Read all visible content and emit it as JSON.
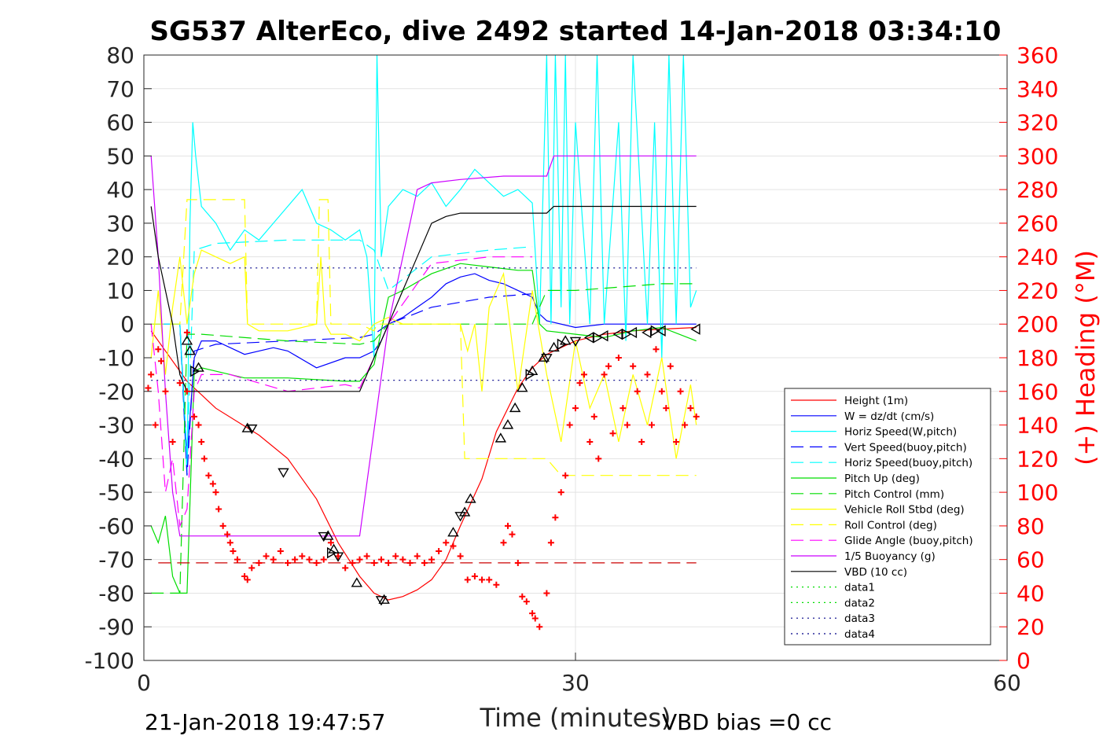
{
  "chart_data": {
    "type": "line",
    "title": "SG537 AlterEco, dive 2492 started 14-Jan-2018 03:34:10",
    "xlabel": "Time (minutes)",
    "ylabel": "",
    "ylabel_right": "(+) Heading (°M)",
    "xlim": [
      0,
      60
    ],
    "ylim": [
      -100,
      80
    ],
    "ylim_right": [
      0,
      360
    ],
    "xticks": [
      0,
      30,
      60
    ],
    "yticks": [
      80,
      70,
      60,
      50,
      40,
      30,
      20,
      10,
      0,
      -10,
      -20,
      -30,
      -40,
      -50,
      -60,
      -70,
      -80,
      -90,
      -100
    ],
    "yticks_right": [
      360,
      340,
      320,
      300,
      280,
      260,
      240,
      220,
      200,
      180,
      160,
      140,
      120,
      100,
      80,
      60,
      40,
      20,
      0
    ],
    "grid": true,
    "legend_position": "lower-right",
    "footer_left": "21-Jan-2018 19:47:57",
    "footer_right": "VBD bias =0 cc",
    "series": [
      {
        "name": "Height (1m)",
        "color": "#ff0000",
        "style": "solid",
        "x": [
          0.5,
          3,
          5,
          8,
          10,
          12,
          13.5,
          15,
          16,
          17,
          18,
          19,
          20,
          21,
          22,
          23.5,
          24.5,
          26,
          27,
          28,
          30,
          32,
          34,
          36,
          38.4
        ],
        "y": [
          -2,
          -17,
          -25,
          -33,
          -40,
          -52,
          -65,
          -75,
          -80,
          -82,
          -81,
          -79,
          -76,
          -70,
          -60,
          -46,
          -32,
          -19,
          -13,
          -9,
          -5,
          -3,
          -2,
          -1.5,
          -1
        ]
      },
      {
        "name": "W = dz/dt (cm/s)",
        "color": "#0000ff",
        "style": "solid",
        "x": [
          0.5,
          2,
          2.5,
          3,
          3.5,
          4,
          5,
          7,
          9,
          10,
          12,
          14,
          15,
          16,
          16.5,
          17,
          18,
          19,
          20,
          21,
          22,
          23,
          24,
          25,
          26,
          27,
          27.5,
          28,
          30,
          32,
          34,
          36,
          38.4
        ],
        "y": [
          0,
          0,
          0,
          -40,
          -10,
          -5,
          -5,
          -9,
          -7,
          -8,
          -13,
          -10,
          -10,
          -8,
          -5,
          0,
          2,
          5,
          8,
          12,
          14,
          15,
          13,
          12,
          10,
          8,
          3,
          1,
          -1,
          0,
          0,
          0,
          0
        ]
      },
      {
        "name": "Horiz Speed(W,pitch)",
        "color": "#00ffff",
        "style": "solid",
        "x": [
          0.5,
          2,
          2.5,
          3,
          3.2,
          3.4,
          3.6,
          4,
          5,
          6,
          7,
          8,
          9,
          10,
          11,
          12,
          13,
          14,
          15,
          15.5,
          16,
          16.2,
          16.5,
          17,
          18,
          19,
          20,
          21,
          22,
          23,
          24,
          25,
          26,
          27,
          27.5,
          28,
          28.3,
          28.6,
          29,
          29.3,
          29.6,
          30,
          31,
          31.5,
          32,
          33,
          33.5,
          34,
          35,
          35.5,
          36,
          36.5,
          37,
          37.5,
          38,
          38.4
        ],
        "y": [
          0,
          0,
          0,
          -45,
          30,
          60,
          50,
          35,
          30,
          22,
          28,
          25,
          30,
          35,
          40,
          30,
          28,
          25,
          28,
          20,
          -10,
          80,
          20,
          35,
          40,
          38,
          42,
          35,
          40,
          46,
          42,
          38,
          40,
          36,
          0,
          80,
          0,
          80,
          5,
          80,
          0,
          60,
          0,
          80,
          0,
          60,
          -5,
          80,
          0,
          60,
          -10,
          80,
          0,
          80,
          5,
          10
        ]
      },
      {
        "name": "Vert Speed(buoy,pitch)",
        "color": "#0000ff",
        "style": "dashed",
        "x": [
          0.5,
          2.5,
          3,
          3.5,
          5,
          10,
          15,
          16,
          17,
          20,
          24,
          27
        ],
        "y": [
          0,
          0,
          -45,
          -8,
          -6,
          -5,
          -4,
          -3,
          0,
          5,
          8,
          9
        ]
      },
      {
        "name": "Horiz Speed(buoy,pitch)",
        "color": "#00ffff",
        "style": "dashed",
        "x": [
          0.5,
          2.5,
          3,
          3.5,
          5,
          10,
          15,
          16,
          17,
          20,
          24,
          27
        ],
        "y": [
          0,
          0,
          -40,
          22,
          24,
          25,
          25,
          22,
          10,
          20,
          22,
          23
        ]
      },
      {
        "name": "Pitch Up (deg)",
        "color": "#00dd00",
        "style": "solid",
        "x": [
          0.5,
          1,
          1.5,
          2,
          2.5,
          3,
          3.5,
          4,
          5,
          7,
          10,
          14,
          15,
          16,
          17,
          18,
          20,
          22,
          24,
          26,
          27,
          27.5,
          28,
          30,
          32,
          34,
          36,
          38.4
        ],
        "y": [
          -60,
          -65,
          -57,
          -75,
          -80,
          -80,
          -14,
          -13,
          -14,
          -16,
          -16,
          -17,
          -17,
          -12,
          8,
          10,
          15,
          18,
          17,
          16,
          16,
          0,
          -2,
          -3,
          -4,
          -2,
          -1,
          -5
        ]
      },
      {
        "name": "Pitch Control (mm)",
        "color": "#00dd00",
        "style": "dashed",
        "x": [
          0.5,
          2.5,
          3,
          4,
          10,
          15,
          16,
          17,
          20,
          24,
          27,
          28,
          30,
          33,
          36,
          38.4
        ],
        "y": [
          -80,
          -80,
          -3,
          -3,
          -5,
          -6,
          -5,
          0,
          0,
          0,
          0,
          10,
          10,
          11,
          12,
          12
        ]
      },
      {
        "name": "Vehicle Roll Stbd (deg)",
        "color": "#ffff00",
        "style": "solid",
        "x": [
          0.5,
          1,
          1.5,
          2,
          2.5,
          3,
          3.5,
          4,
          5,
          6,
          7,
          7.2,
          8,
          10,
          12,
          12.3,
          12.6,
          13,
          14,
          15,
          16,
          17,
          18,
          20,
          22,
          22.5,
          23,
          23.5,
          24,
          25,
          26,
          27,
          28,
          29,
          30,
          31,
          32,
          33,
          34,
          35,
          36,
          37,
          38,
          38.4
        ],
        "y": [
          -10,
          10,
          -15,
          5,
          20,
          0,
          15,
          22,
          20,
          18,
          20,
          0,
          -2,
          -2,
          0,
          20,
          0,
          -3,
          -3,
          -5,
          0,
          2,
          0,
          0,
          0,
          -8,
          0,
          -20,
          5,
          15,
          -20,
          10,
          -15,
          -35,
          -5,
          -25,
          -15,
          -35,
          -15,
          -30,
          -10,
          -40,
          -18,
          -30
        ]
      },
      {
        "name": "Roll Control (deg)",
        "color": "#ffff00",
        "style": "dashed",
        "x": [
          0.5,
          2.5,
          3,
          4,
          6,
          7,
          7.2,
          12,
          12.2,
          12.8,
          13,
          15,
          16,
          16.2,
          17,
          22,
          22.3,
          27,
          28,
          29,
          30,
          31,
          32,
          33,
          34,
          35,
          36,
          37,
          38.4
        ],
        "y": [
          0,
          0,
          37,
          37,
          37,
          37,
          0,
          0,
          37,
          37,
          0,
          0,
          -2,
          0,
          0,
          0,
          -40,
          -40,
          -40,
          -45,
          -45,
          -45,
          -45,
          -45,
          -45,
          -45,
          -45,
          -45,
          -45
        ]
      },
      {
        "name": "Glide Angle (buoy,pitch)",
        "color": "#ff00ff",
        "style": "dashed",
        "x": [
          0.5,
          1,
          1.5,
          2,
          2.5,
          3,
          3.5,
          4,
          6,
          10,
          14,
          15,
          16,
          17,
          20,
          24,
          27
        ],
        "y": [
          0,
          -20,
          -50,
          -40,
          -60,
          -55,
          -20,
          -15,
          -15,
          -20,
          -18,
          -19,
          -10,
          0,
          18,
          20,
          20
        ]
      },
      {
        "name": "1/5 Buoyancy (g)",
        "color": "#cc00ff",
        "style": "solid",
        "x": [
          0.5,
          1,
          1.5,
          2,
          2.5,
          3,
          3.5,
          7,
          10,
          14,
          15,
          17,
          19,
          20,
          22,
          25,
          28,
          28.5,
          30,
          33,
          36,
          38.4
        ],
        "y": [
          50,
          20,
          -20,
          -50,
          -63,
          -63,
          -63,
          -63,
          -63,
          -63,
          -63,
          0,
          40,
          42,
          43,
          44,
          44,
          50,
          50,
          50,
          50,
          50
        ]
      },
      {
        "name": "VBD (10 cc)",
        "color": "#000000",
        "style": "solid",
        "x": [
          0.5,
          1,
          2,
          2.5,
          3,
          3.5,
          7,
          10,
          14,
          15,
          16,
          17,
          18,
          19,
          20,
          21,
          22,
          25,
          28,
          28.5,
          30,
          33,
          36,
          38.4
        ],
        "y": [
          35,
          20,
          0,
          -15,
          -20,
          -20,
          -20,
          -20,
          -20,
          -20,
          -10,
          0,
          10,
          20,
          30,
          32,
          33,
          33,
          33,
          35,
          35,
          35,
          35,
          35
        ]
      },
      {
        "name": "data1",
        "color": "#00dd00",
        "style": "dotted",
        "x": [],
        "y": []
      },
      {
        "name": "data2",
        "color": "#00dd00",
        "style": "dotted",
        "x": [],
        "y": []
      },
      {
        "name": "data3",
        "color": "#000088",
        "style": "dotted",
        "x": [
          0.5,
          38.4
        ],
        "y": [
          16.7,
          16.7
        ]
      },
      {
        "name": "data4",
        "color": "#000088",
        "style": "dotted",
        "x": [
          0.5,
          38.4
        ],
        "y": [
          -16.7,
          -16.7
        ]
      }
    ],
    "extra_lines": [
      {
        "color": "#cc0000",
        "style": "dashed",
        "x": [
          1,
          38.4
        ],
        "y": [
          -71,
          -71
        ]
      }
    ],
    "heading_points": {
      "color": "#ff0000",
      "marker": "+",
      "x": [
        0.3,
        0.5,
        0.8,
        1,
        1.2,
        1.5,
        2,
        2.5,
        3,
        3,
        3.5,
        3.8,
        4,
        4.2,
        4.5,
        4.8,
        5,
        5.2,
        5.5,
        5.8,
        6,
        6.2,
        6.5,
        7,
        7.2,
        7.5,
        8,
        8.5,
        9,
        9.5,
        10,
        10.5,
        11,
        11.5,
        12,
        12.5,
        13,
        13.5,
        14,
        14.5,
        15,
        15.5,
        16,
        16.5,
        17,
        17.5,
        18,
        18.5,
        19,
        19.5,
        20,
        20.5,
        21,
        21.5,
        22,
        22.5,
        23,
        23.5,
        24,
        24.5,
        25,
        25.3,
        25.6,
        26,
        26.3,
        26.6,
        27,
        27.2,
        27.5,
        28,
        28.3,
        28.6,
        29,
        29.3,
        29.6,
        30,
        30.3,
        30.6,
        31,
        31.3,
        31.6,
        32,
        32.3,
        32.6,
        33,
        33.3,
        33.6,
        34,
        34.3,
        34.6,
        35,
        35.3,
        35.6,
        36,
        36.3,
        36.6,
        37,
        37.3,
        37.6,
        38,
        38.4
      ],
      "y": [
        162,
        170,
        140,
        185,
        178,
        160,
        130,
        165,
        195,
        160,
        145,
        140,
        130,
        120,
        110,
        105,
        100,
        90,
        80,
        75,
        70,
        65,
        60,
        50,
        48,
        55,
        58,
        62,
        60,
        65,
        58,
        60,
        62,
        60,
        58,
        60,
        70,
        62,
        55,
        58,
        60,
        62,
        58,
        60,
        58,
        62,
        60,
        58,
        62,
        58,
        60,
        65,
        70,
        68,
        62,
        48,
        50,
        48,
        48,
        45,
        70,
        80,
        75,
        58,
        38,
        35,
        28,
        25,
        20,
        40,
        70,
        85,
        100,
        110,
        140,
        150,
        165,
        170,
        130,
        145,
        120,
        170,
        175,
        135,
        180,
        150,
        140,
        175,
        160,
        130,
        170,
        140,
        185,
        160,
        150,
        175,
        130,
        160,
        140,
        150,
        145
      ]
    },
    "height_markers": {
      "color": "#000000",
      "up_triangles": [
        [
          3,
          -5
        ],
        [
          3.2,
          -8
        ],
        [
          3.8,
          -13
        ],
        [
          7.2,
          -31
        ],
        [
          12.8,
          -63
        ],
        [
          13.2,
          -67
        ],
        [
          14.8,
          -77
        ],
        [
          16.7,
          -82
        ],
        [
          21.5,
          -62
        ],
        [
          22.3,
          -56
        ],
        [
          22.7,
          -52
        ],
        [
          24.8,
          -34
        ],
        [
          25.3,
          -30
        ],
        [
          25.8,
          -25
        ],
        [
          26.3,
          -19
        ],
        [
          27,
          -14
        ],
        [
          27.8,
          -10
        ],
        [
          28.5,
          -7
        ],
        [
          29.3,
          -5
        ]
      ],
      "down_triangles": [
        [
          7.5,
          -31
        ],
        [
          9.7,
          -44
        ],
        [
          12.5,
          -63
        ],
        [
          13.5,
          -69
        ],
        [
          16.5,
          -82
        ],
        [
          22,
          -57
        ],
        [
          28,
          -10
        ],
        [
          30,
          -5
        ]
      ],
      "left_triangles": [
        [
          31,
          -4
        ],
        [
          32,
          -3.5
        ],
        [
          33,
          -3
        ],
        [
          34,
          -2.5
        ],
        [
          35,
          -2.5
        ],
        [
          36,
          -2
        ],
        [
          38.4,
          -1.5
        ]
      ],
      "right_triangles": [
        [
          3.5,
          -14
        ],
        [
          13,
          -68
        ],
        [
          26.8,
          -15
        ],
        [
          29,
          -6
        ],
        [
          31.5,
          -4
        ],
        [
          33.5,
          -3
        ],
        [
          35.5,
          -2
        ]
      ]
    }
  }
}
